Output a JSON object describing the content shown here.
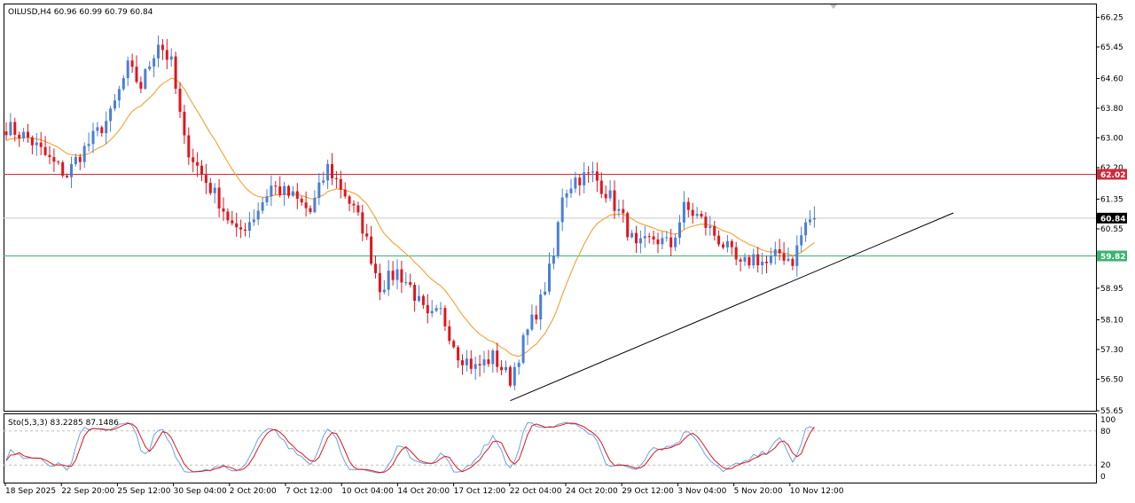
{
  "header": {
    "symbol_line": "OILUSD,H4  60.96 60.99 60.79 60.84",
    "stoch_line": "Sto(5,3,3) 83.2285 87.1486"
  },
  "colors": {
    "bull": "#4a7fd6",
    "bear": "#e0161e",
    "ma": "#f5a030",
    "red_level": "#d12a3a",
    "green_level": "#3cb371",
    "price_line": "#c9c9c9",
    "trendline": "#000000",
    "stoch_main": "#6aa3e0",
    "stoch_signal": "#e0161e",
    "grid_frame": "#000000"
  },
  "chart_data": [
    {
      "type": "candlestick",
      "symbol": "OILUSD",
      "timeframe": "H4",
      "ylim": [
        55.65,
        66.62
      ],
      "y_ticks": [
        "66.25",
        "65.45",
        "64.60",
        "63.80",
        "63.00",
        "62.20",
        "61.35",
        "60.55",
        "59.75",
        "58.95",
        "58.10",
        "57.30",
        "56.50",
        "55.65"
      ],
      "x_ticks": [
        "18 Sep 2025",
        "22 Sep 20:00",
        "25 Sep 12:00",
        "30 Sep 04:00",
        "2 Oct 20:00",
        "7 Oct 12:00",
        "10 Oct 04:00",
        "14 Oct 20:00",
        "17 Oct 12:00",
        "22 Oct 04:00",
        "24 Oct 20:00",
        "29 Oct 12:00",
        "3 Nov 04:00",
        "5 Nov 20:00",
        "10 Nov 12:00"
      ],
      "price_labels": {
        "resistance": "62.02",
        "current": "60.84",
        "support": "59.82"
      },
      "levels": {
        "resistance": 62.02,
        "current": 60.84,
        "support": 59.82
      },
      "path": [
        [
          0,
          63.3
        ],
        [
          5,
          63.0
        ],
        [
          10,
          62.4
        ],
        [
          14,
          62.0
        ],
        [
          16,
          62.4
        ],
        [
          20,
          63.0
        ],
        [
          24,
          63.6
        ],
        [
          28,
          64.9
        ],
        [
          31,
          64.4
        ],
        [
          35,
          65.6
        ],
        [
          38,
          65.0
        ],
        [
          41,
          62.9
        ],
        [
          45,
          62.0
        ],
        [
          49,
          61.3
        ],
        [
          53,
          60.4
        ],
        [
          57,
          60.9
        ],
        [
          61,
          61.7
        ],
        [
          66,
          61.4
        ],
        [
          70,
          61.0
        ],
        [
          74,
          62.2
        ],
        [
          78,
          61.5
        ],
        [
          82,
          60.6
        ],
        [
          86,
          59.0
        ],
        [
          90,
          59.4
        ],
        [
          93,
          59.0
        ],
        [
          97,
          58.1
        ],
        [
          100,
          58.3
        ],
        [
          104,
          57.2
        ],
        [
          108,
          56.8
        ],
        [
          112,
          57.1
        ],
        [
          116,
          56.5
        ],
        [
          119,
          57.5
        ],
        [
          123,
          58.6
        ],
        [
          126,
          59.8
        ],
        [
          128,
          61.5
        ],
        [
          131,
          61.9
        ],
        [
          135,
          62.0
        ],
        [
          139,
          61.4
        ],
        [
          142,
          60.8
        ],
        [
          145,
          60.0
        ],
        [
          149,
          60.3
        ],
        [
          153,
          60.1
        ],
        [
          156,
          61.1
        ],
        [
          159,
          60.9
        ],
        [
          163,
          60.4
        ],
        [
          166,
          60.0
        ],
        [
          169,
          59.5
        ],
        [
          172,
          59.8
        ],
        [
          175,
          59.6
        ],
        [
          178,
          59.9
        ],
        [
          181,
          59.7
        ],
        [
          184,
          60.7
        ],
        [
          186,
          60.9
        ]
      ],
      "ma_period": 50,
      "ma_value_last": 60.18,
      "trendline": {
        "from": {
          "bar": 116,
          "price": 55.92
        },
        "to": {
          "bar": 218,
          "price": 60.98
        }
      },
      "stochastic": {
        "k": 5,
        "d": 3,
        "slowing": 3,
        "main_last": 83.2285,
        "signal_last": 87.1486,
        "levels": [
          20,
          80
        ],
        "ylim": [
          0,
          100
        ],
        "y_ticks": [
          "100",
          "80",
          "20",
          "0"
        ]
      }
    }
  ]
}
